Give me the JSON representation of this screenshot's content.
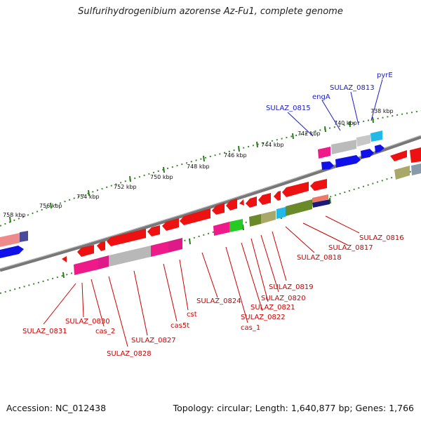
{
  "title": "Sulfurihydrogenibium azorense Az-Fu1, complete genome",
  "footer": {
    "accession": "Accession: NC_012438",
    "stats": "Topology: circular; Length: 1,640,877 bp; Genes: 1,766"
  },
  "colors": {
    "backbone": "#7a7a7a",
    "tick": "#3a8a2a",
    "label_blue": "#1a1acc",
    "label_red": "#cc0000",
    "forward_gene": "#1010e8",
    "reverse_gene": "#ee1111"
  },
  "kbp_labels": [
    "738 kbp",
    "740 kbp",
    "742 kbp",
    "744 kbp",
    "746 kbp",
    "748 kbp",
    "750 kbp",
    "752 kbp",
    "754 kbp",
    "756 kbp",
    "758 kbp"
  ],
  "gene_labels_top": [
    "pyrE",
    "SULAZ_0813",
    "engA",
    "SULAZ_0815"
  ],
  "gene_labels_bottom": [
    "SULAZ_0816",
    "SULAZ_0817",
    "SULAZ_0818",
    "SULAZ_0819",
    "SULAZ_0820",
    "SULAZ_0821",
    "SULAZ_0822",
    "cas_1",
    "SULAZ_0824",
    "cst",
    "cas5t",
    "SULAZ_0827",
    "SULAZ_0828",
    "cas_2",
    "SULAZ_0830",
    "SULAZ_0831"
  ]
}
